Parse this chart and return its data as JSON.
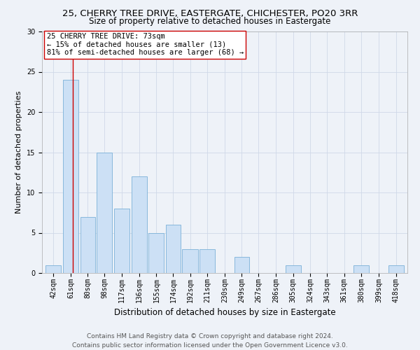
{
  "title1": "25, CHERRY TREE DRIVE, EASTERGATE, CHICHESTER, PO20 3RR",
  "title2": "Size of property relative to detached houses in Eastergate",
  "xlabel": "Distribution of detached houses by size in Eastergate",
  "ylabel": "Number of detached properties",
  "bar_color": "#cce0f5",
  "bar_edge_color": "#7ab0d8",
  "categories": [
    "42sqm",
    "61sqm",
    "80sqm",
    "98sqm",
    "117sqm",
    "136sqm",
    "155sqm",
    "174sqm",
    "192sqm",
    "211sqm",
    "230sqm",
    "249sqm",
    "267sqm",
    "286sqm",
    "305sqm",
    "324sqm",
    "343sqm",
    "361sqm",
    "380sqm",
    "399sqm",
    "418sqm"
  ],
  "values": [
    1,
    24,
    7,
    15,
    8,
    12,
    5,
    6,
    3,
    3,
    0,
    2,
    0,
    0,
    1,
    0,
    0,
    0,
    1,
    0,
    1
  ],
  "bin_edges": [
    42,
    61,
    80,
    98,
    117,
    136,
    155,
    174,
    192,
    211,
    230,
    249,
    267,
    286,
    305,
    324,
    343,
    361,
    380,
    399,
    418,
    437
  ],
  "subject_size": 73,
  "subject_line_color": "#cc0000",
  "annotation_text": "25 CHERRY TREE DRIVE: 73sqm\n← 15% of detached houses are smaller (13)\n81% of semi-detached houses are larger (68) →",
  "annotation_box_color": "#ffffff",
  "annotation_box_edge": "#cc0000",
  "ylim": [
    0,
    30
  ],
  "yticks": [
    0,
    5,
    10,
    15,
    20,
    25,
    30
  ],
  "grid_color": "#d0d8e8",
  "background_color": "#eef2f8",
  "plot_bg_color": "#eef2f8",
  "footer1": "Contains HM Land Registry data © Crown copyright and database right 2024.",
  "footer2": "Contains public sector information licensed under the Open Government Licence v3.0.",
  "title1_fontsize": 9.5,
  "title2_fontsize": 8.5,
  "xlabel_fontsize": 8.5,
  "ylabel_fontsize": 8,
  "tick_fontsize": 7,
  "footer_fontsize": 6.5,
  "annotation_fontsize": 7.5
}
